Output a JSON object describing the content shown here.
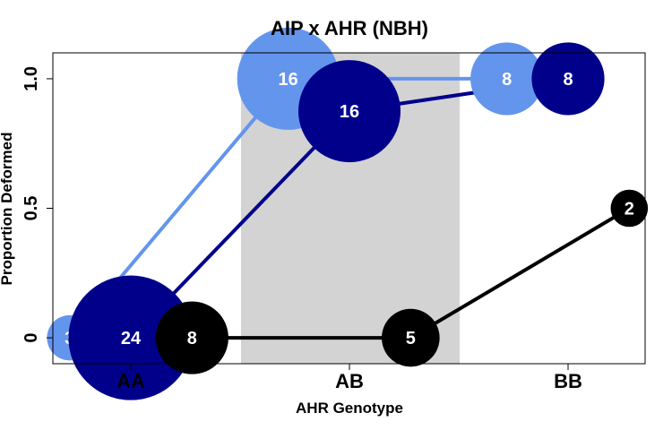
{
  "chart_data": {
    "type": "line",
    "title": "AIP x AHR (NBH)",
    "xlabel": "AHR Genotype",
    "ylabel": "Proportion Deformed",
    "categories": [
      "AA",
      "AB",
      "BB"
    ],
    "ylim": [
      -0.1,
      1.1
    ],
    "yticks": [
      0,
      0.5,
      1
    ],
    "ytick_labels": [
      "0",
      "0.5",
      "1.0"
    ],
    "highlight_category": "AB",
    "highlight_color": "#d3d3d3",
    "series": [
      {
        "color": "#6495ed",
        "x_offset": -0.28,
        "values": [
          0,
          1.0,
          1.0
        ],
        "counts": [
          3,
          16,
          8
        ]
      },
      {
        "color": "#00008b",
        "x_offset": 0.0,
        "values": [
          0,
          0.875,
          1.0
        ],
        "counts": [
          24,
          16,
          8
        ]
      },
      {
        "color": "#000000",
        "x_offset": 0.28,
        "values": [
          0,
          0,
          0.5
        ],
        "counts": [
          8,
          5,
          2
        ]
      }
    ]
  }
}
